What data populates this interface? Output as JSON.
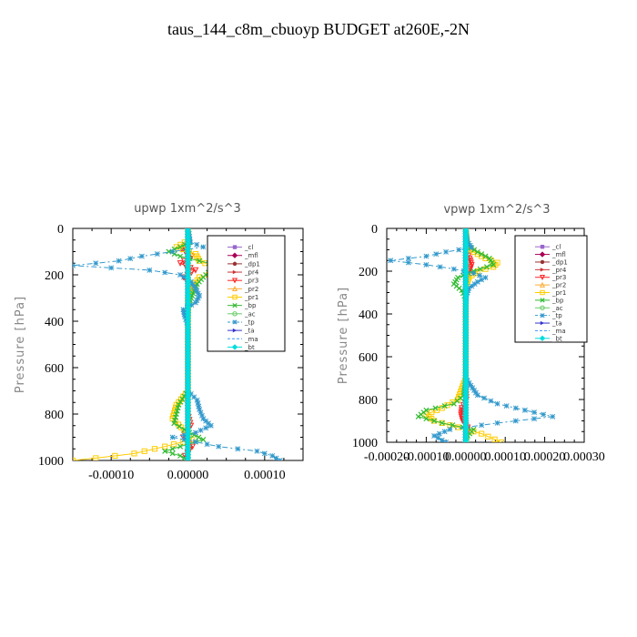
{
  "title": "taus_144_c8m_cbuoyp  BUDGET at260E,-2N",
  "chart_data": [
    {
      "type": "line",
      "title": "upwp   1xm^2/s^3",
      "ylabel": "Pressure [hPa]",
      "xlim": [
        -0.00015,
        0.00015
      ],
      "ylim": [
        1000,
        0
      ],
      "xticks": [
        -0.0001,
        0.0,
        0.0001
      ],
      "xtick_labels": [
        "-0.00010",
        "0.00000",
        "0.00010"
      ],
      "yticks": [
        0,
        200,
        400,
        600,
        800,
        1000
      ],
      "ytick_labels": [
        "0",
        "200",
        "400",
        "600",
        "800",
        "1000"
      ],
      "legend_position": "top-right",
      "series": [
        {
          "name": "_cl",
          "color": "#9966cc",
          "marker": "square",
          "dash": "",
          "y": [
            0,
            100,
            200,
            300,
            400,
            500,
            600,
            700,
            800,
            900,
            1000
          ],
          "x": [
            0,
            0,
            0,
            0,
            0,
            0,
            0,
            0,
            0,
            0,
            0
          ]
        },
        {
          "name": "_mfl",
          "color": "#aa0055",
          "marker": "diamond",
          "dash": "",
          "y": [
            0,
            100,
            200,
            300,
            400,
            500,
            600,
            700,
            800,
            900,
            1000
          ],
          "x": [
            0,
            0,
            0,
            0,
            0,
            0,
            0,
            0,
            0,
            0,
            0
          ]
        },
        {
          "name": "_dp1",
          "color": "#993333",
          "marker": "circle",
          "dash": "",
          "y": [
            0,
            100,
            200,
            300,
            400,
            500,
            600,
            700,
            800,
            900,
            1000
          ],
          "x": [
            0,
            0,
            0,
            0,
            0,
            0,
            0,
            0,
            0,
            0,
            0
          ]
        },
        {
          "name": "_pr4",
          "color": "#cc3333",
          "marker": "triangle-right",
          "dash": "",
          "y": [
            0,
            100,
            200,
            300,
            400,
            500,
            600,
            700,
            800,
            900,
            1000
          ],
          "x": [
            0,
            0,
            0,
            0,
            0,
            0,
            0,
            0,
            0,
            0,
            0
          ]
        },
        {
          "name": "_pr3",
          "color": "#ff2222",
          "marker": "triangle-down",
          "dash": "",
          "y": [
            0,
            60,
            90,
            120,
            150,
            180,
            210,
            240,
            300,
            400,
            500,
            600,
            700,
            800,
            850,
            900,
            940,
            980,
            1000
          ],
          "x": [
            0,
            2e-06,
            -8e-06,
            5e-06,
            -1e-05,
            1e-05,
            -6e-06,
            3e-06,
            0,
            0,
            0,
            0,
            0,
            0,
            4e-06,
            -6e-06,
            6e-06,
            -4e-06,
            0
          ]
        },
        {
          "name": "_pr2",
          "color": "#ffaa33",
          "marker": "triangle-up",
          "dash": "",
          "y": [
            0,
            100,
            200,
            300,
            400,
            500,
            600,
            700,
            800,
            900,
            1000
          ],
          "x": [
            0,
            0,
            0,
            0,
            0,
            0,
            0,
            0,
            0,
            0,
            0
          ]
        },
        {
          "name": "_pr1",
          "color": "#ffcc00",
          "marker": "square-open",
          "dash": "",
          "y": [
            0,
            50,
            80,
            110,
            140,
            160,
            180,
            210,
            260,
            300,
            400,
            500,
            600,
            700,
            760,
            820,
            870,
            910,
            940,
            970,
            990,
            1000
          ],
          "x": [
            0,
            1e-06,
            -1.5e-05,
            1e-05,
            1.5e-05,
            3e-05,
            5e-05,
            1.5e-05,
            4e-06,
            0,
            0,
            0,
            0,
            0,
            -1.5e-05,
            -2e-05,
            -5e-06,
            5e-06,
            -3e-05,
            -7e-05,
            -0.00012,
            -0.00015
          ]
        },
        {
          "name": "_bp",
          "color": "#33bb33",
          "marker": "cross",
          "dash": "",
          "y": [
            0,
            60,
            80,
            100,
            120,
            140,
            160,
            180,
            210,
            240,
            270,
            300,
            330,
            400,
            500,
            600,
            700,
            760,
            800,
            840,
            880,
            910,
            940,
            960,
            980,
            1000
          ],
          "x": [
            0,
            2e-06,
            -1e-05,
            -2.5e-05,
            -1e-05,
            1.5e-05,
            4e-05,
            3e-05,
            2e-05,
            1.2e-05,
            8e-06,
            4e-06,
            1e-06,
            0,
            0,
            0,
            0,
            -1.2e-05,
            -1.5e-05,
            -1.8e-05,
            2e-06,
            2e-05,
            -1e-05,
            -3e-05,
            -1e-05,
            0
          ]
        },
        {
          "name": "_ac",
          "color": "#66cc66",
          "marker": "circle-open",
          "dash": "",
          "y": [
            0,
            100,
            200,
            300,
            400,
            500,
            600,
            700,
            800,
            900,
            1000
          ],
          "x": [
            0,
            0,
            0,
            0,
            0,
            0,
            0,
            0,
            0,
            0,
            0
          ]
        },
        {
          "name": "_tp",
          "color": "#3399cc",
          "marker": "star",
          "dash": "6,3,2,3",
          "y": [
            0,
            60,
            80,
            100,
            120,
            140,
            160,
            180,
            200,
            230,
            260,
            290,
            320,
            350,
            380,
            420,
            500,
            600,
            700,
            740,
            780,
            820,
            850,
            880,
            900,
            920,
            940,
            960,
            980,
            1000
          ],
          "x": [
            0,
            3e-06,
            2e-05,
            -2e-05,
            -6e-05,
            -9e-05,
            -0.00015,
            -5e-05,
            -1e-05,
            4e-06,
            1e-05,
            1.5e-05,
            1e-05,
            -6e-06,
            -4e-06,
            0,
            0,
            0,
            0,
            1.2e-05,
            1.5e-05,
            2e-05,
            3e-05,
            1e-05,
            -2e-05,
            1e-05,
            4e-05,
            9e-05,
            0.00011,
            0.00012
          ]
        },
        {
          "name": "_ta",
          "color": "#3333cc",
          "marker": "triangle-right",
          "dash": "",
          "y": [
            0,
            100,
            200,
            300,
            400,
            500,
            600,
            700,
            800,
            900,
            1000
          ],
          "x": [
            0,
            0,
            0,
            0,
            0,
            0,
            0,
            0,
            0,
            0,
            0
          ]
        },
        {
          "name": "_ma",
          "color": "#3399ff",
          "marker": "none",
          "dash": "6,3",
          "y": [
            0,
            100,
            200,
            300,
            400,
            500,
            600,
            700,
            800,
            900,
            1000
          ],
          "x": [
            0,
            0,
            0,
            0,
            0,
            0,
            0,
            0,
            0,
            0,
            0
          ]
        },
        {
          "name": "_bt",
          "color": "#00dddd",
          "marker": "diamond",
          "dash": "",
          "y": [
            0,
            100,
            200,
            300,
            400,
            500,
            600,
            700,
            800,
            900,
            1000
          ],
          "x": [
            0,
            0,
            0,
            0,
            0,
            0,
            0,
            0,
            0,
            0,
            0
          ]
        }
      ]
    },
    {
      "type": "line",
      "title": "vpwp   1xm^2/s^3",
      "ylabel": "Pressure [hPa]",
      "xlim": [
        -0.0002,
        0.0003
      ],
      "ylim": [
        1000,
        0
      ],
      "xticks": [
        -0.0002,
        -0.0001,
        0.0,
        0.0001,
        0.0002,
        0.0003
      ],
      "xtick_labels": [
        "-0.00020",
        "-0.00010",
        "0.00000",
        "0.00010",
        "0.00020",
        "0.00030"
      ],
      "yticks": [
        0,
        200,
        400,
        600,
        800,
        1000
      ],
      "ytick_labels": [
        "0",
        "200",
        "400",
        "600",
        "800",
        "1000"
      ],
      "legend_position": "top-right",
      "series": [
        {
          "name": "_cl",
          "color": "#9966cc",
          "marker": "square",
          "dash": "",
          "y": [
            0,
            100,
            200,
            300,
            400,
            500,
            600,
            700,
            800,
            900,
            1000
          ],
          "x": [
            0,
            0,
            0,
            0,
            0,
            0,
            0,
            0,
            0,
            0,
            0
          ]
        },
        {
          "name": "_mfl",
          "color": "#aa0055",
          "marker": "diamond",
          "dash": "",
          "y": [
            0,
            100,
            200,
            300,
            400,
            500,
            600,
            700,
            800,
            900,
            1000
          ],
          "x": [
            0,
            0,
            0,
            0,
            0,
            0,
            0,
            0,
            0,
            0,
            0
          ]
        },
        {
          "name": "_dp1",
          "color": "#993333",
          "marker": "circle",
          "dash": "",
          "y": [
            0,
            100,
            200,
            300,
            400,
            500,
            600,
            700,
            800,
            900,
            1000
          ],
          "x": [
            0,
            0,
            0,
            0,
            0,
            0,
            0,
            0,
            0,
            0,
            0
          ]
        },
        {
          "name": "_pr4",
          "color": "#cc3333",
          "marker": "triangle-right",
          "dash": "",
          "y": [
            0,
            100,
            200,
            300,
            400,
            500,
            600,
            700,
            800,
            900,
            1000
          ],
          "x": [
            0,
            0,
            0,
            0,
            0,
            0,
            0,
            0,
            0,
            0,
            0
          ]
        },
        {
          "name": "_pr3",
          "color": "#ff2222",
          "marker": "triangle-down",
          "dash": "",
          "y": [
            0,
            100,
            140,
            170,
            200,
            230,
            260,
            300,
            400,
            500,
            600,
            700,
            800,
            840,
            870,
            900,
            930,
            960,
            1000
          ],
          "x": [
            0,
            2e-06,
            1e-05,
            1.5e-05,
            1e-05,
            4e-06,
            1e-06,
            0,
            0,
            0,
            0,
            0,
            2e-06,
            -1e-05,
            -1.2e-05,
            -8e-06,
            5e-06,
            3e-06,
            0
          ]
        },
        {
          "name": "_pr2",
          "color": "#ffaa33",
          "marker": "triangle-up",
          "dash": "",
          "y": [
            0,
            100,
            200,
            300,
            400,
            500,
            600,
            700,
            800,
            900,
            1000
          ],
          "x": [
            0,
            0,
            0,
            0,
            0,
            0,
            0,
            0,
            0,
            0,
            0
          ]
        },
        {
          "name": "_pr1",
          "color": "#ffcc00",
          "marker": "square-open",
          "dash": "",
          "y": [
            0,
            80,
            110,
            140,
            160,
            180,
            200,
            230,
            260,
            300,
            400,
            500,
            600,
            700,
            800,
            840,
            870,
            900,
            930,
            960,
            1000
          ],
          "x": [
            0,
            4e-06,
            2e-05,
            5e-05,
            8e-05,
            7e-05,
            3e-05,
            8e-06,
            2e-06,
            0,
            0,
            0,
            0,
            0,
            -2e-05,
            -6e-05,
            -0.0001,
            -8e-05,
            -2e-05,
            4e-05,
            9e-05
          ]
        },
        {
          "name": "_bp",
          "color": "#33bb33",
          "marker": "cross",
          "dash": "",
          "y": [
            0,
            80,
            110,
            140,
            170,
            200,
            230,
            260,
            290,
            330,
            400,
            500,
            600,
            700,
            780,
            820,
            850,
            880,
            910,
            940,
            970,
            1000
          ],
          "x": [
            0,
            4e-06,
            3e-05,
            6e-05,
            7e-05,
            2e-05,
            -2e-05,
            -3e-05,
            -1e-05,
            0,
            0,
            0,
            0,
            0,
            -5e-06,
            -3e-05,
            -0.0001,
            -0.00012,
            -6e-05,
            2e-05,
            5e-06,
            0
          ]
        },
        {
          "name": "_ac",
          "color": "#66cc66",
          "marker": "circle-open",
          "dash": "",
          "y": [
            0,
            100,
            200,
            300,
            400,
            500,
            600,
            700,
            800,
            900,
            1000
          ],
          "x": [
            0,
            0,
            0,
            0,
            0,
            0,
            0,
            0,
            0,
            0,
            0
          ]
        },
        {
          "name": "_tp",
          "color": "#3399cc",
          "marker": "star",
          "dash": "6,3,2,3",
          "y": [
            0,
            60,
            90,
            110,
            130,
            150,
            170,
            190,
            210,
            230,
            250,
            280,
            310,
            350,
            400,
            500,
            600,
            700,
            780,
            820,
            850,
            880,
            910,
            940,
            970,
            1000
          ],
          "x": [
            0,
            4e-06,
            1.5e-05,
            -5e-05,
            -0.0001,
            -0.00019,
            -0.0001,
            -3e-05,
            2e-05,
            5e-05,
            3e-05,
            8e-06,
            2e-06,
            0,
            0,
            0,
            0,
            0,
            3e-05,
            8e-05,
            0.00015,
            0.00022,
            8e-05,
            -4e-05,
            -8e-05,
            -5e-05
          ]
        },
        {
          "name": "_ta",
          "color": "#3333cc",
          "marker": "triangle-right",
          "dash": "",
          "y": [
            0,
            100,
            200,
            300,
            400,
            500,
            600,
            700,
            800,
            900,
            1000
          ],
          "x": [
            0,
            0,
            0,
            0,
            0,
            0,
            0,
            0,
            0,
            0,
            0
          ]
        },
        {
          "name": "_ma",
          "color": "#3399ff",
          "marker": "none",
          "dash": "6,3",
          "y": [
            0,
            100,
            200,
            300,
            400,
            500,
            600,
            700,
            800,
            900,
            1000
          ],
          "x": [
            0,
            0,
            0,
            0,
            0,
            0,
            0,
            0,
            0,
            0,
            0
          ]
        },
        {
          "name": "_bt",
          "color": "#00dddd",
          "marker": "diamond",
          "dash": "",
          "y": [
            0,
            100,
            200,
            300,
            400,
            500,
            600,
            700,
            800,
            900,
            1000
          ],
          "x": [
            0,
            0,
            0,
            0,
            0,
            0,
            0,
            0,
            0,
            0,
            0
          ]
        }
      ]
    }
  ]
}
